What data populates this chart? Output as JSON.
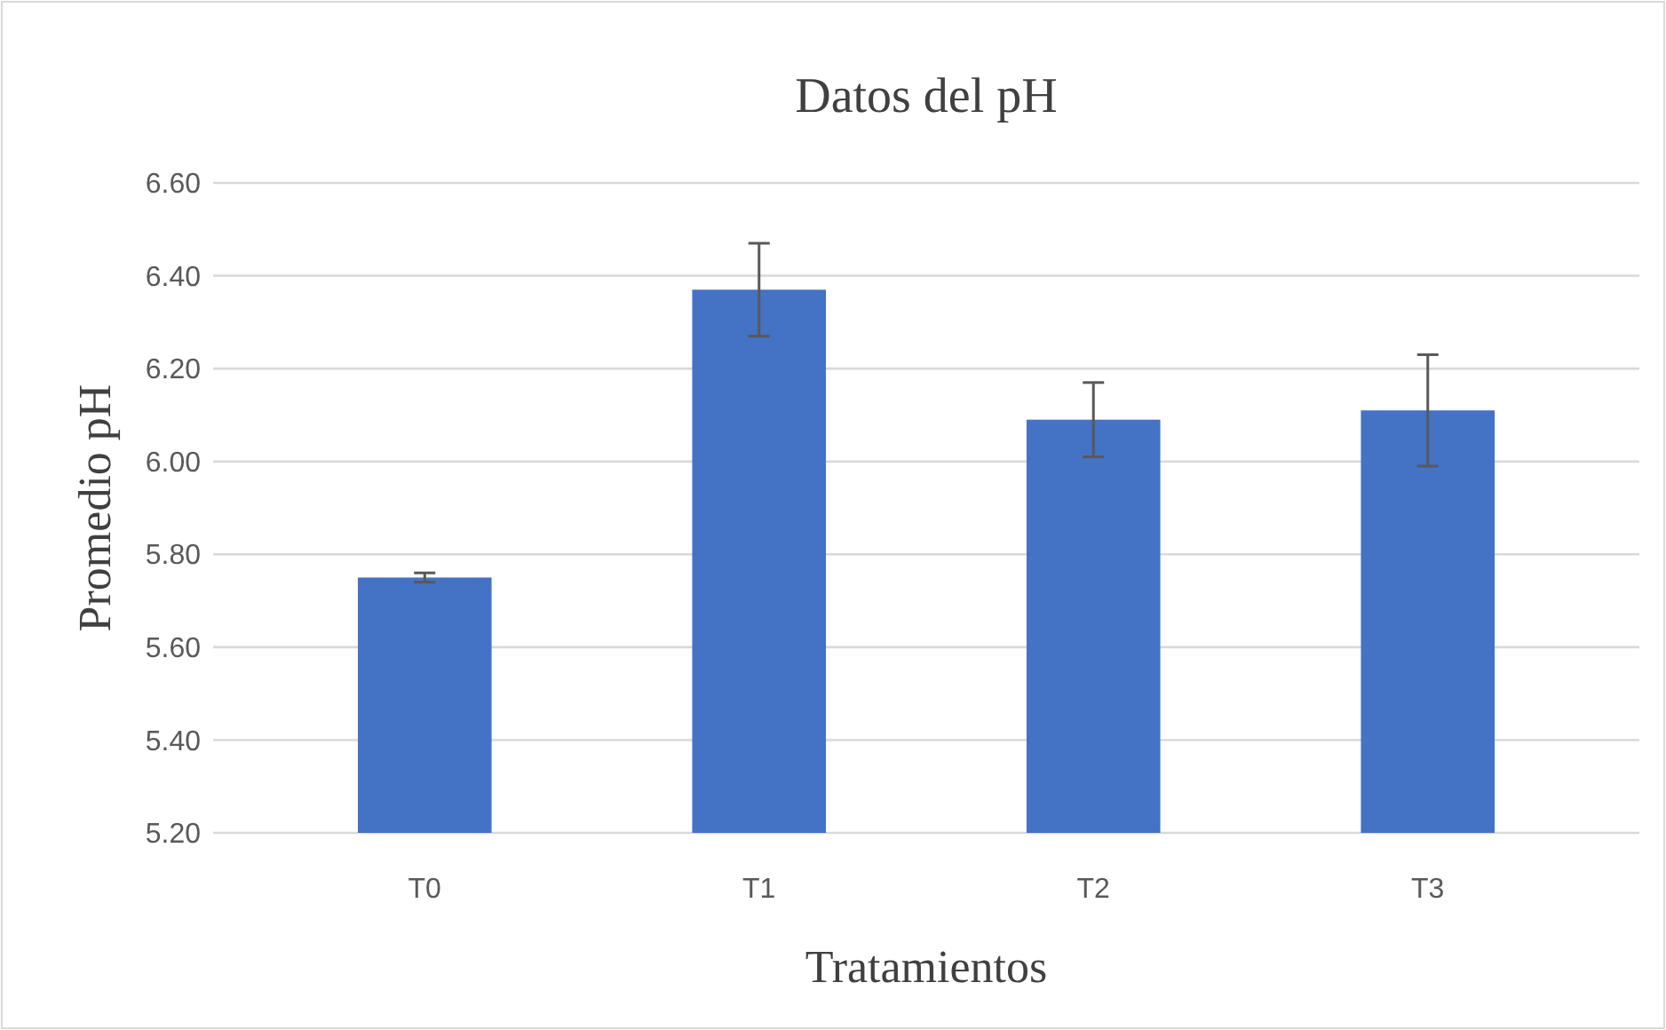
{
  "chart_data": {
    "type": "bar",
    "title": "Datos del pH",
    "xlabel": "Tratamientos",
    "ylabel": "Promedio pH",
    "categories": [
      "T0",
      "T1",
      "T2",
      "T3"
    ],
    "values": [
      5.75,
      6.37,
      6.09,
      6.11
    ],
    "errors": [
      0.01,
      0.1,
      0.08,
      0.12
    ],
    "color": "#4472c4",
    "ylim": [
      5.2,
      6.6
    ],
    "yticks": [
      {
        "value": 5.2,
        "label": "5.20"
      },
      {
        "value": 5.4,
        "label": "5.40"
      },
      {
        "value": 5.6,
        "label": "5.60"
      },
      {
        "value": 5.8,
        "label": "5.80"
      },
      {
        "value": 6.0,
        "label": "6.00"
      },
      {
        "value": 6.2,
        "label": "6.20"
      },
      {
        "value": 6.4,
        "label": "6.40"
      },
      {
        "value": 6.6,
        "label": "6.60"
      }
    ],
    "grid": "y"
  }
}
